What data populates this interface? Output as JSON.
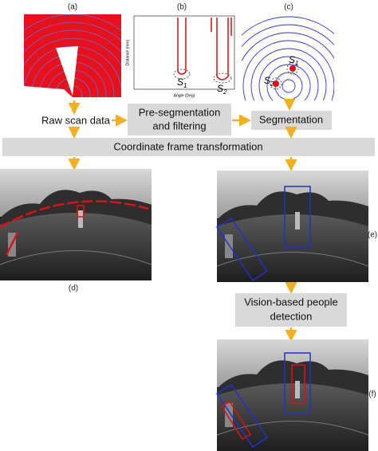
{
  "panels": {
    "a": {
      "label": "(a)"
    },
    "b": {
      "label": "(b)",
      "x_axis_label": "Angle (Deg)",
      "y_axis_label": "Distance (mm)",
      "segments": [
        {
          "symbol": "S",
          "index": "1"
        },
        {
          "symbol": "S",
          "index": "2"
        }
      ]
    },
    "c": {
      "label": "(c)",
      "segments": [
        {
          "symbol": "S",
          "index": "1"
        },
        {
          "symbol": "S",
          "index": "2"
        }
      ]
    },
    "d": {
      "label": "(d)"
    },
    "e": {
      "label": "(e)"
    },
    "f": {
      "label": "(f)"
    }
  },
  "steps": {
    "raw": "Raw scan data",
    "presegmentation": {
      "lines": [
        "Pre-segmentation",
        "and filtering"
      ]
    },
    "segmentation": "Segmentation",
    "transformation": "Coordinate frame transformation",
    "vision": {
      "lines": [
        "Vision-based people",
        "detection"
      ]
    }
  }
}
